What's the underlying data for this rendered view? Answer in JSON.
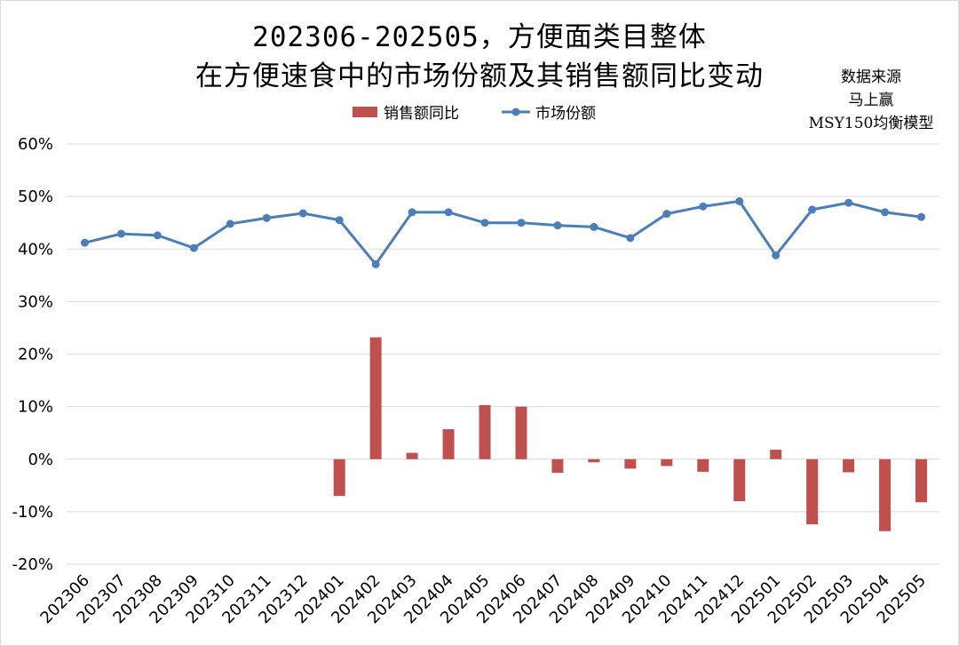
{
  "title_line1": "202306-202505，方便面类目整体",
  "title_line2": "在方便速食中的市场份额及其销售额同比变动",
  "source": {
    "line1": "数据来源",
    "line2": "马上赢",
    "line3": "MSY150均衡模型"
  },
  "chart_data": {
    "type": "bar+line",
    "categories": [
      "202306",
      "202307",
      "202308",
      "202309",
      "202310",
      "202311",
      "202312",
      "202401",
      "202402",
      "202403",
      "202404",
      "202405",
      "202406",
      "202407",
      "202408",
      "202409",
      "202410",
      "202411",
      "202412",
      "202501",
      "202502",
      "202503",
      "202504",
      "202505"
    ],
    "ylim": [
      -20,
      60
    ],
    "yticks": [
      -20,
      -10,
      0,
      10,
      20,
      30,
      40,
      50,
      60
    ],
    "ytick_labels": [
      "-20%",
      "-10%",
      "0%",
      "10%",
      "20%",
      "30%",
      "40%",
      "50%",
      "60%"
    ],
    "grid": true,
    "legend_placement": "top-center",
    "series": [
      {
        "name": "销售额同比",
        "type": "bar",
        "color": "#c0504d",
        "values": [
          null,
          null,
          null,
          null,
          null,
          null,
          null,
          -7.0,
          23.2,
          1.2,
          5.7,
          10.3,
          10.0,
          -2.6,
          -0.6,
          -1.8,
          -1.3,
          -2.4,
          -8.0,
          1.8,
          -12.4,
          -2.5,
          -13.7,
          -8.2
        ]
      },
      {
        "name": "市场份额",
        "type": "line",
        "color": "#4a7ebb",
        "values": [
          41.2,
          42.9,
          42.6,
          40.2,
          44.8,
          45.9,
          46.8,
          45.5,
          37.1,
          47.0,
          47.0,
          45.0,
          45.0,
          44.5,
          44.2,
          42.1,
          46.7,
          48.1,
          49.1,
          38.8,
          47.5,
          48.8,
          47.0,
          46.1
        ]
      }
    ]
  }
}
